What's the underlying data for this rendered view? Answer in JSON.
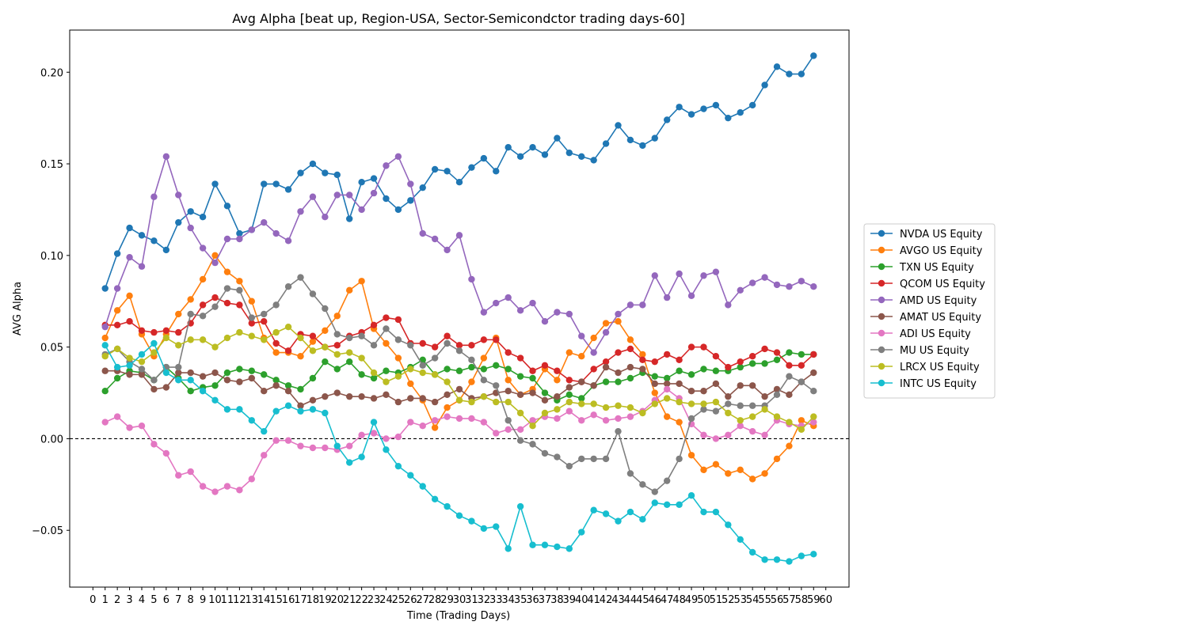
{
  "chart_data": {
    "type": "line",
    "title": "Avg Alpha [beat up, Region-USA, Sector-Semicondctor trading days-60]",
    "xlabel": "Time (Trading Days)",
    "ylabel": "AVG Alpha",
    "xlim": [
      -1.9,
      61.9
    ],
    "ylim": [
      -0.081,
      0.223
    ],
    "x_ticks": [
      0,
      1,
      2,
      3,
      4,
      5,
      6,
      7,
      8,
      9,
      10,
      11,
      12,
      13,
      14,
      15,
      16,
      17,
      18,
      19,
      20,
      21,
      22,
      23,
      24,
      25,
      26,
      27,
      28,
      29,
      30,
      31,
      32,
      33,
      34,
      35,
      36,
      37,
      38,
      39,
      40,
      41,
      42,
      43,
      44,
      45,
      46,
      47,
      48,
      49,
      50,
      51,
      52,
      53,
      54,
      55,
      56,
      57,
      58,
      59,
      60
    ],
    "y_ticks": [
      -0.05,
      0.0,
      0.05,
      0.1,
      0.15,
      0.2
    ],
    "y_tick_labels": [
      "−0.05",
      "0.00",
      "0.05",
      "0.10",
      "0.15",
      "0.20"
    ],
    "reference_line": 0,
    "legend_position": "center-right",
    "grid": false,
    "x": [
      1,
      2,
      3,
      4,
      5,
      6,
      7,
      8,
      9,
      10,
      11,
      12,
      13,
      14,
      15,
      16,
      17,
      18,
      19,
      20,
      21,
      22,
      23,
      24,
      25,
      26,
      27,
      28,
      29,
      30,
      31,
      32,
      33,
      34,
      35,
      36,
      37,
      38,
      39,
      40,
      41,
      42,
      43,
      44,
      45,
      46,
      47,
      48,
      49,
      50,
      51,
      52,
      53,
      54,
      55,
      56,
      57,
      58,
      59
    ],
    "series": [
      {
        "name": "NVDA US Equity",
        "color": "#1f77b4",
        "values": [
          0.082,
          0.101,
          0.115,
          0.111,
          0.108,
          0.103,
          0.118,
          0.124,
          0.121,
          0.139,
          0.127,
          0.112,
          0.114,
          0.139,
          0.139,
          0.136,
          0.145,
          0.15,
          0.145,
          0.144,
          0.12,
          0.14,
          0.142,
          0.131,
          0.125,
          0.13,
          0.137,
          0.147,
          0.146,
          0.14,
          0.148,
          0.153,
          0.146,
          0.159,
          0.154,
          0.159,
          0.155,
          0.164,
          0.156,
          0.154,
          0.152,
          0.161,
          0.171,
          0.163,
          0.16,
          0.164,
          0.174,
          0.181,
          0.177,
          0.18,
          0.182,
          0.175,
          0.178,
          0.182,
          0.193,
          0.203,
          0.199,
          0.199,
          0.209
        ]
      },
      {
        "name": "AVGO US Equity",
        "color": "#ff7f0e",
        "values": [
          0.055,
          0.07,
          0.078,
          0.057,
          0.045,
          0.057,
          0.068,
          0.076,
          0.087,
          0.1,
          0.091,
          0.086,
          0.075,
          0.055,
          0.047,
          0.047,
          0.045,
          0.053,
          0.059,
          0.067,
          0.081,
          0.086,
          0.06,
          0.052,
          0.044,
          0.03,
          0.021,
          0.006,
          0.017,
          0.021,
          0.031,
          0.044,
          0.055,
          0.032,
          0.024,
          0.027,
          0.038,
          0.032,
          0.047,
          0.045,
          0.055,
          0.063,
          0.064,
          0.054,
          0.046,
          0.025,
          0.012,
          0.009,
          -0.009,
          -0.017,
          -0.014,
          -0.019,
          -0.017,
          -0.022,
          -0.019,
          -0.011,
          -0.004,
          0.01,
          0.007
        ]
      },
      {
        "name": "TXN US Equity",
        "color": "#2ca02c",
        "values": [
          0.026,
          0.033,
          0.037,
          0.036,
          0.032,
          0.039,
          0.033,
          0.026,
          0.028,
          0.029,
          0.036,
          0.038,
          0.037,
          0.035,
          0.032,
          0.029,
          0.027,
          0.033,
          0.042,
          0.038,
          0.042,
          0.035,
          0.033,
          0.037,
          0.036,
          0.039,
          0.043,
          0.035,
          0.038,
          0.037,
          0.039,
          0.038,
          0.04,
          0.038,
          0.034,
          0.033,
          0.025,
          0.021,
          0.024,
          0.022,
          0.029,
          0.031,
          0.031,
          0.033,
          0.036,
          0.034,
          0.033,
          0.037,
          0.035,
          0.038,
          0.037,
          0.037,
          0.039,
          0.041,
          0.041,
          0.043,
          0.047,
          0.046,
          0.046
        ]
      },
      {
        "name": "QCOM US Equity",
        "color": "#d62728",
        "values": [
          0.062,
          0.062,
          0.064,
          0.059,
          0.058,
          0.059,
          0.058,
          0.063,
          0.073,
          0.077,
          0.074,
          0.073,
          0.063,
          0.064,
          0.052,
          0.048,
          0.057,
          0.056,
          0.05,
          0.051,
          0.056,
          0.058,
          0.062,
          0.066,
          0.065,
          0.052,
          0.052,
          0.05,
          0.056,
          0.051,
          0.051,
          0.054,
          0.054,
          0.047,
          0.044,
          0.037,
          0.04,
          0.037,
          0.032,
          0.031,
          0.038,
          0.042,
          0.047,
          0.049,
          0.043,
          0.042,
          0.046,
          0.043,
          0.05,
          0.05,
          0.045,
          0.039,
          0.042,
          0.045,
          0.049,
          0.047,
          0.04,
          0.04,
          0.046
        ]
      },
      {
        "name": "AMD US Equity",
        "color": "#9467bd",
        "values": [
          0.061,
          0.082,
          0.099,
          0.094,
          0.132,
          0.154,
          0.133,
          0.115,
          0.104,
          0.096,
          0.109,
          0.109,
          0.114,
          0.118,
          0.112,
          0.108,
          0.124,
          0.132,
          0.121,
          0.133,
          0.133,
          0.125,
          0.134,
          0.149,
          0.154,
          0.139,
          0.112,
          0.109,
          0.103,
          0.111,
          0.087,
          0.069,
          0.074,
          0.077,
          0.07,
          0.074,
          0.064,
          0.069,
          0.068,
          0.056,
          0.047,
          0.058,
          0.068,
          0.073,
          0.073,
          0.089,
          0.077,
          0.09,
          0.078,
          0.089,
          0.091,
          0.073,
          0.081,
          0.085,
          0.088,
          0.084,
          0.083,
          0.086,
          0.083
        ]
      },
      {
        "name": "AMAT US Equity",
        "color": "#8c564b",
        "values": [
          0.037,
          0.037,
          0.035,
          0.035,
          0.027,
          0.028,
          0.036,
          0.036,
          0.034,
          0.036,
          0.032,
          0.031,
          0.033,
          0.026,
          0.029,
          0.026,
          0.018,
          0.021,
          0.023,
          0.025,
          0.023,
          0.023,
          0.022,
          0.024,
          0.02,
          0.022,
          0.022,
          0.02,
          0.024,
          0.027,
          0.022,
          0.023,
          0.025,
          0.026,
          0.024,
          0.025,
          0.021,
          0.023,
          0.028,
          0.031,
          0.029,
          0.039,
          0.036,
          0.039,
          0.038,
          0.03,
          0.03,
          0.03,
          0.026,
          0.026,
          0.03,
          0.023,
          0.029,
          0.029,
          0.023,
          0.027,
          0.024,
          0.031,
          0.036
        ]
      },
      {
        "name": "ADI US Equity",
        "color": "#e377c2",
        "values": [
          0.009,
          0.012,
          0.006,
          0.007,
          -0.003,
          -0.008,
          -0.02,
          -0.018,
          -0.026,
          -0.029,
          -0.026,
          -0.028,
          -0.022,
          -0.009,
          -0.001,
          -0.001,
          -0.004,
          -0.005,
          -0.005,
          -0.006,
          -0.004,
          0.002,
          0.003,
          0.0,
          0.001,
          0.009,
          0.007,
          0.01,
          0.012,
          0.011,
          0.011,
          0.009,
          0.003,
          0.005,
          0.005,
          0.01,
          0.012,
          0.011,
          0.015,
          0.01,
          0.013,
          0.01,
          0.011,
          0.012,
          0.015,
          0.021,
          0.027,
          0.022,
          0.008,
          0.002,
          0.0,
          0.002,
          0.007,
          0.004,
          0.002,
          0.01,
          0.008,
          0.007,
          0.009
        ]
      },
      {
        "name": "MU US Equity",
        "color": "#7f7f7f",
        "values": [
          0.046,
          0.049,
          0.042,
          0.038,
          0.032,
          0.039,
          0.039,
          0.068,
          0.067,
          0.072,
          0.082,
          0.081,
          0.066,
          0.068,
          0.073,
          0.083,
          0.088,
          0.079,
          0.071,
          0.057,
          0.055,
          0.056,
          0.051,
          0.06,
          0.054,
          0.051,
          0.04,
          0.044,
          0.052,
          0.048,
          0.043,
          0.032,
          0.029,
          0.01,
          -0.001,
          -0.003,
          -0.008,
          -0.01,
          -0.015,
          -0.011,
          -0.011,
          -0.011,
          0.004,
          -0.019,
          -0.025,
          -0.029,
          -0.023,
          -0.011,
          0.011,
          0.016,
          0.015,
          0.019,
          0.018,
          0.018,
          0.018,
          0.024,
          0.034,
          0.031,
          0.026
        ]
      },
      {
        "name": "LRCX US Equity",
        "color": "#bcbd22",
        "values": [
          0.045,
          0.049,
          0.044,
          0.042,
          0.047,
          0.055,
          0.051,
          0.054,
          0.054,
          0.05,
          0.055,
          0.058,
          0.056,
          0.054,
          0.058,
          0.061,
          0.055,
          0.048,
          0.05,
          0.046,
          0.047,
          0.044,
          0.036,
          0.031,
          0.034,
          0.038,
          0.036,
          0.035,
          0.031,
          0.021,
          0.02,
          0.023,
          0.02,
          0.02,
          0.014,
          0.007,
          0.014,
          0.016,
          0.02,
          0.019,
          0.019,
          0.017,
          0.018,
          0.017,
          0.014,
          0.019,
          0.022,
          0.02,
          0.019,
          0.019,
          0.02,
          0.014,
          0.01,
          0.012,
          0.016,
          0.012,
          0.009,
          0.005,
          0.012
        ]
      },
      {
        "name": "INTC US Equity",
        "color": "#17becf",
        "values": [
          0.051,
          0.039,
          0.04,
          0.046,
          0.052,
          0.036,
          0.032,
          0.032,
          0.026,
          0.021,
          0.016,
          0.016,
          0.01,
          0.004,
          0.015,
          0.018,
          0.015,
          0.016,
          0.014,
          -0.004,
          -0.013,
          -0.01,
          0.009,
          -0.006,
          -0.015,
          -0.02,
          -0.026,
          -0.033,
          -0.037,
          -0.042,
          -0.045,
          -0.049,
          -0.048,
          -0.06,
          -0.037,
          -0.058,
          -0.058,
          -0.059,
          -0.06,
          -0.051,
          -0.039,
          -0.041,
          -0.045,
          -0.04,
          -0.044,
          -0.035,
          -0.036,
          -0.036,
          -0.031,
          -0.04,
          -0.04,
          -0.047,
          -0.055,
          -0.062,
          -0.066,
          -0.066,
          -0.067,
          -0.064,
          -0.063
        ]
      }
    ]
  }
}
